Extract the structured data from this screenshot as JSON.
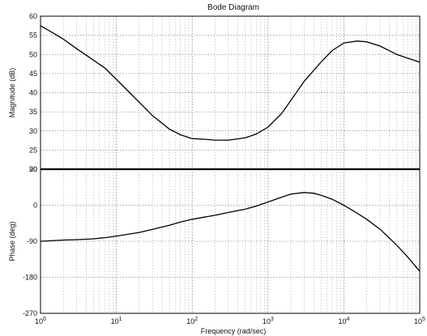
{
  "chart_data": {
    "type": "line",
    "title": "Bode Diagram",
    "xlabel": "Frequency (rad/sec)",
    "xscale": "log",
    "xlim": [
      1,
      100000
    ],
    "x_ticks": [
      {
        "base": "10",
        "exp": "0"
      },
      {
        "base": "10",
        "exp": "1"
      },
      {
        "base": "10",
        "exp": "2"
      },
      {
        "base": "10",
        "exp": "3"
      },
      {
        "base": "10",
        "exp": "4"
      },
      {
        "base": "10",
        "exp": "5"
      }
    ],
    "grid": true,
    "panels": [
      {
        "id": "magnitude",
        "ylabel": "Magnitude (dB)",
        "ylim": [
          20,
          60
        ],
        "yticks": [
          "20",
          "25",
          "30",
          "35",
          "40",
          "45",
          "50",
          "55",
          "60"
        ],
        "series": [
          {
            "x": [
              1,
              1.5,
              2,
              3,
              5,
              7,
              10,
              15,
              20,
              30,
              50,
              70,
              100,
              150,
              200,
              300,
              500,
              700,
              1000,
              1500,
              2000,
              3000,
              5000,
              7000,
              10000,
              15000,
              20000,
              30000,
              50000,
              70000,
              100000
            ],
            "y": [
              57.5,
              55.5,
              54,
              51.5,
              48.5,
              46.5,
              43.5,
              40,
              37.5,
              34,
              30.5,
              29,
              28,
              27.8,
              27.6,
              27.6,
              28.2,
              29.2,
              31,
              34.5,
              38,
              43,
              48,
              51,
              53,
              53.5,
              53.3,
              52.2,
              50,
              49,
              48
            ]
          }
        ]
      },
      {
        "id": "phase",
        "ylabel": "Phase (deg)",
        "ylim": [
          -270,
          90
        ],
        "yticks": [
          "-270",
          "-180",
          "-90",
          "0",
          "90"
        ],
        "series": [
          {
            "x": [
              1,
              2,
              3,
              5,
              7,
              10,
              20,
              30,
              50,
              70,
              100,
              200,
              300,
              500,
              700,
              1000,
              1500,
              2000,
              3000,
              4000,
              5000,
              7000,
              10000,
              15000,
              20000,
              30000,
              50000,
              70000,
              100000
            ],
            "y": [
              -90,
              -87,
              -86,
              -84,
              -81,
              -77,
              -68,
              -60,
              -50,
              -42,
              -35,
              -25,
              -18,
              -10,
              -2,
              8,
              20,
              28,
              32,
              30,
              25,
              15,
              0,
              -20,
              -35,
              -60,
              -100,
              -130,
              -165
            ]
          }
        ]
      }
    ]
  }
}
